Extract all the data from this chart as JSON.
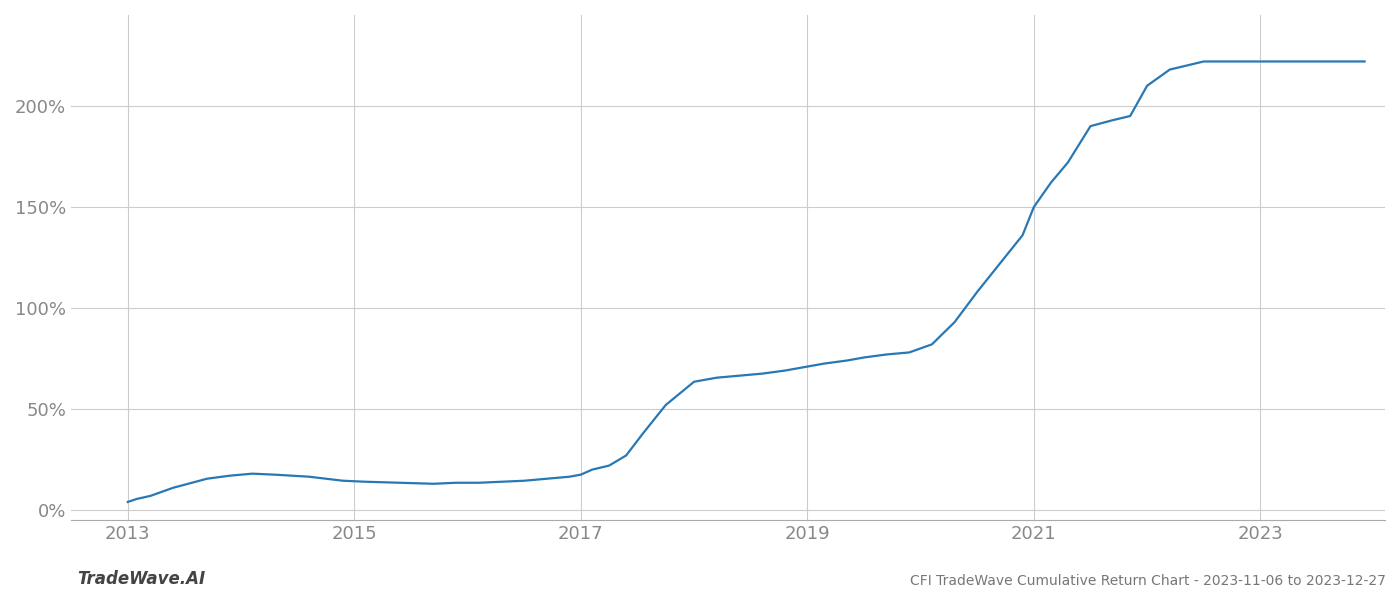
{
  "title": "CFI TradeWave Cumulative Return Chart - 2023-11-06 to 2023-12-27",
  "watermark": "TradeWave.AI",
  "line_color": "#2878b5",
  "background_color": "#ffffff",
  "grid_color": "#cccccc",
  "x_tick_color": "#888888",
  "y_tick_color": "#888888",
  "line_width": 1.6,
  "xlim": [
    2012.5,
    2024.1
  ],
  "ylim": [
    -0.05,
    2.45
  ],
  "x_ticks": [
    2013,
    2015,
    2017,
    2019,
    2021,
    2023
  ],
  "y_ticks": [
    0.0,
    0.5,
    1.0,
    1.5,
    2.0
  ],
  "y_tick_labels": [
    "0%",
    "50%",
    "100%",
    "150%",
    "200%"
  ],
  "data_x": [
    2013.0,
    2013.08,
    2013.2,
    2013.4,
    2013.7,
    2013.9,
    2014.1,
    2014.3,
    2014.6,
    2014.9,
    2015.1,
    2015.4,
    2015.7,
    2015.9,
    2016.1,
    2016.3,
    2016.5,
    2016.7,
    2016.9,
    2017.0,
    2017.1,
    2017.25,
    2017.4,
    2017.55,
    2017.75,
    2018.0,
    2018.2,
    2018.4,
    2018.6,
    2018.8,
    2019.0,
    2019.15,
    2019.35,
    2019.5,
    2019.7,
    2019.9,
    2020.1,
    2020.3,
    2020.5,
    2020.7,
    2020.9,
    2021.0,
    2021.15,
    2021.3,
    2021.5,
    2021.7,
    2021.85,
    2022.0,
    2022.2,
    2022.5,
    2022.7,
    2022.9,
    2023.0,
    2023.3,
    2023.6,
    2023.92
  ],
  "data_y": [
    0.04,
    0.055,
    0.07,
    0.11,
    0.155,
    0.17,
    0.18,
    0.175,
    0.165,
    0.145,
    0.14,
    0.135,
    0.13,
    0.135,
    0.135,
    0.14,
    0.145,
    0.155,
    0.165,
    0.175,
    0.2,
    0.22,
    0.27,
    0.38,
    0.52,
    0.635,
    0.655,
    0.665,
    0.675,
    0.69,
    0.71,
    0.725,
    0.74,
    0.755,
    0.77,
    0.78,
    0.82,
    0.93,
    1.08,
    1.22,
    1.36,
    1.5,
    1.62,
    1.72,
    1.9,
    1.93,
    1.95,
    2.1,
    2.18,
    2.22,
    2.22,
    2.22,
    2.22,
    2.22,
    2.22,
    2.22
  ]
}
